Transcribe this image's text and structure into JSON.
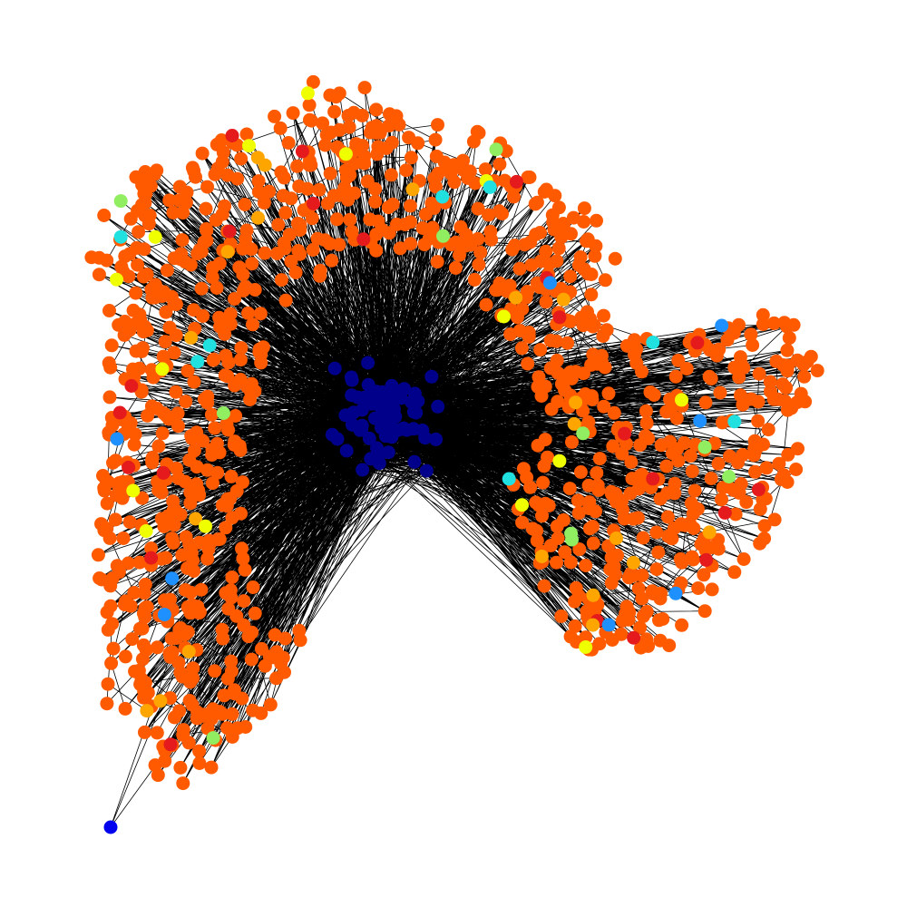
{
  "figure": {
    "type": "network-graph",
    "background": "#ffffff",
    "edge_color": "#000000"
  },
  "node_groups": [
    {
      "name": "periphery-orange",
      "color": "#ff5a00",
      "count": 1100
    },
    {
      "name": "core-navy",
      "color": "#00008b",
      "count": 80
    },
    {
      "name": "periphery-red",
      "color": "#e41a1c",
      "count": 22
    },
    {
      "name": "periphery-amber",
      "color": "#ffa500",
      "count": 20
    },
    {
      "name": "periphery-yellow",
      "color": "#f0ff00",
      "count": 15
    },
    {
      "name": "periphery-light-green",
      "color": "#90ee60",
      "count": 10
    },
    {
      "name": "periphery-cyan",
      "color": "#20e0e0",
      "count": 8
    },
    {
      "name": "periphery-azure",
      "color": "#1e90ff",
      "count": 8
    },
    {
      "name": "outlier-blue",
      "color": "#0000ee",
      "count": 1
    }
  ]
}
